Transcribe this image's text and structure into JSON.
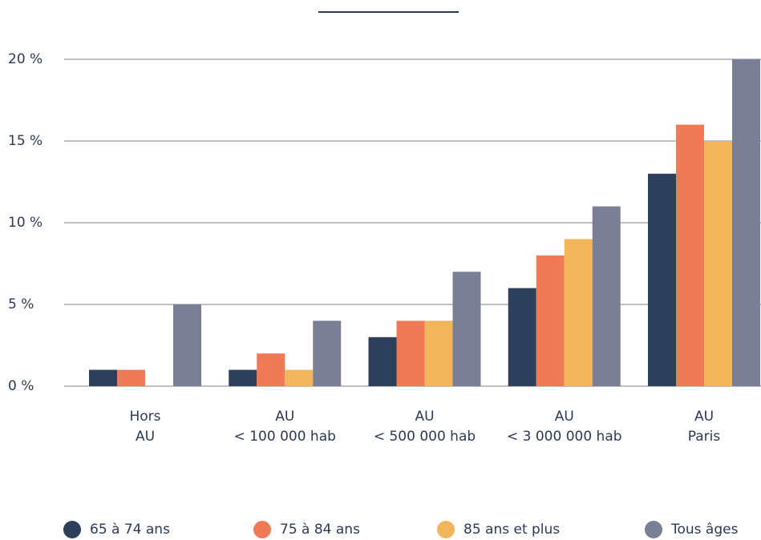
{
  "chart_data": {
    "type": "bar",
    "categories": [
      [
        "Hors",
        "AU"
      ],
      [
        "AU",
        "< 100 000 hab"
      ],
      [
        "AU",
        "< 500 000 hab"
      ],
      [
        "AU",
        "< 3 000 000 hab"
      ],
      [
        "AU",
        "Paris"
      ]
    ],
    "series": [
      {
        "name": "65 à 74 ans",
        "color": "#2e3f5c",
        "values": [
          1,
          1,
          3,
          6,
          13
        ]
      },
      {
        "name": "75 à 84 ans",
        "color": "#f07a55",
        "values": [
          1,
          2,
          4,
          8,
          16
        ]
      },
      {
        "name": "85 ans et plus",
        "color": "#f2b55c",
        "values": [
          0,
          1,
          4,
          9,
          15
        ]
      },
      {
        "name": "Tous âges",
        "color": "#7a7f96",
        "values": [
          5,
          4,
          7,
          11,
          20
        ]
      }
    ],
    "ylim": [
      0,
      20
    ],
    "yticks": [
      {
        "value": 0,
        "label": "0 %"
      },
      {
        "value": 5,
        "label": "5 %"
      },
      {
        "value": 10,
        "label": "10 %"
      },
      {
        "value": 15,
        "label": "15 %"
      },
      {
        "value": 20,
        "label": "20 %"
      }
    ],
    "grid": true,
    "legend": "bottom"
  }
}
